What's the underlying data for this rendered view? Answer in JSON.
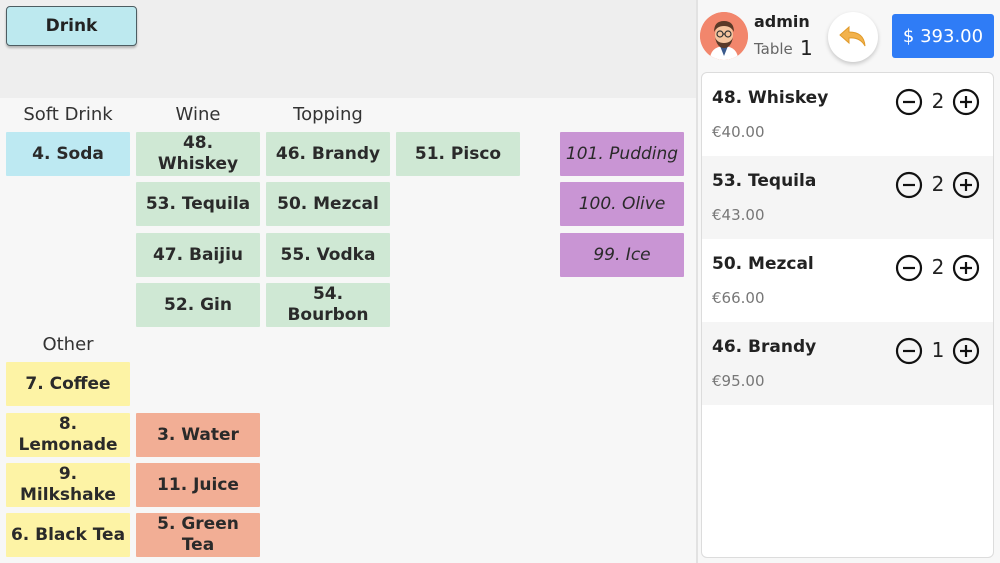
{
  "category": {
    "label": "Drink"
  },
  "columns": {
    "soft_drink": "Soft Drink",
    "wine": "Wine",
    "topping": "Topping",
    "other": "Other"
  },
  "items": {
    "soda": "4. Soda",
    "whiskey": "48. Whiskey",
    "brandy": "46. Brandy",
    "pisco": "51. Pisco",
    "pudding": "101. Pudding",
    "tequila": "53. Tequila",
    "mezcal": "50. Mezcal",
    "olive": "100. Olive",
    "baijiu": "47. Baijiu",
    "vodka": "55. Vodka",
    "ice": "99. Ice",
    "gin": "52. Gin",
    "bourbon": "54. Bourbon",
    "coffee": "7. Coffee",
    "lemonade": "8. Lemonade",
    "water": "3. Water",
    "milkshake": "9. Milkshake",
    "juice": "11. Juice",
    "black_tea": "6. Black Tea",
    "green_tea": "5. Green Tea"
  },
  "header": {
    "user_name": "admin",
    "table_label": "Table",
    "table_number": "1",
    "total": "$ 393.00"
  },
  "order": [
    {
      "name": "48. Whiskey",
      "price": "€40.00",
      "qty": "2"
    },
    {
      "name": "53. Tequila",
      "price": "€43.00",
      "qty": "2"
    },
    {
      "name": "50. Mezcal",
      "price": "€66.00",
      "qty": "2"
    },
    {
      "name": "46. Brandy",
      "price": "€95.00",
      "qty": "1"
    }
  ],
  "colors": {
    "soft": "#bde9f2",
    "wine": "#cfe8d4",
    "yellow": "#fdf3a5",
    "salmon": "#f2ae95",
    "purple": "#c995d4",
    "total_button": "#2f7cf6"
  },
  "icons": {
    "undo": "undo-arrow-icon",
    "minus": "minus-circle-icon",
    "plus": "plus-circle-icon",
    "avatar": "user-avatar-icon"
  }
}
